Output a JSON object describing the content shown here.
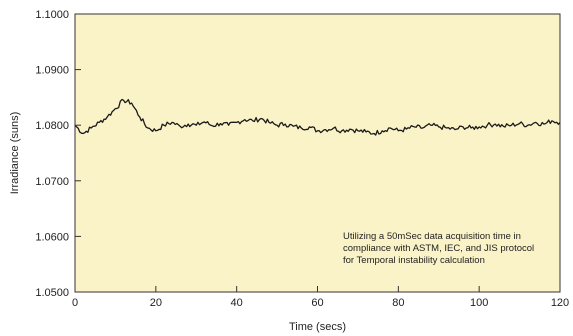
{
  "chart_data": {
    "type": "line",
    "title": "",
    "xlabel": "Time (secs)",
    "ylabel": "Irradiance (suns)",
    "xlim": [
      0,
      120
    ],
    "ylim": [
      1.05,
      1.1
    ],
    "x_ticks": [
      0,
      20,
      40,
      60,
      80,
      100,
      120
    ],
    "x_tick_labels": [
      "0",
      "20",
      "40",
      "60",
      "80",
      "100",
      "120"
    ],
    "y_ticks": [
      1.05,
      1.06,
      1.07,
      1.08,
      1.09,
      1.1
    ],
    "y_tick_labels": [
      "1.0500",
      "1.0600",
      "1.0700",
      "1.0800",
      "1.0900",
      "1.1000"
    ],
    "grid": false,
    "colors": {
      "plot_background": "#fbf3c8",
      "line": "#1a1a1a",
      "frame": "#333333"
    },
    "annotation": [
      "Utilizing a 50mSec data acquisition time in",
      "compliance with ASTM, IEC, and JIS protocol",
      "for Temporal instability calculation"
    ],
    "series": [
      {
        "x": [
          0,
          2,
          4,
          6,
          8,
          10,
          12,
          14,
          16,
          18,
          20,
          22,
          24,
          26,
          28,
          30,
          32,
          34,
          36,
          38,
          40,
          42,
          44,
          46,
          48,
          50,
          52,
          54,
          56,
          58,
          60,
          62,
          64,
          66,
          68,
          70,
          72,
          74,
          76,
          78,
          80,
          82,
          84,
          86,
          88,
          90,
          92,
          94,
          96,
          98,
          100,
          102,
          104,
          106,
          108,
          110,
          112,
          114,
          116,
          118,
          120
        ],
        "values": [
          1.08,
          1.0785,
          1.0795,
          1.0805,
          1.0815,
          1.083,
          1.0845,
          1.084,
          1.0815,
          1.0795,
          1.079,
          1.08,
          1.0805,
          1.0798,
          1.0802,
          1.08,
          1.0806,
          1.0799,
          1.0803,
          1.08,
          1.0805,
          1.081,
          1.0808,
          1.0812,
          1.0805,
          1.08,
          1.0802,
          1.0798,
          1.0795,
          1.0797,
          1.079,
          1.0792,
          1.0795,
          1.079,
          1.0793,
          1.079,
          1.0788,
          1.0785,
          1.079,
          1.0795,
          1.079,
          1.0793,
          1.0797,
          1.0795,
          1.08,
          1.0797,
          1.0795,
          1.0792,
          1.0797,
          1.0795,
          1.0797,
          1.08,
          1.0802,
          1.0798,
          1.08,
          1.0803,
          1.08,
          1.0805,
          1.0802,
          1.0808,
          1.0805
        ]
      }
    ]
  }
}
